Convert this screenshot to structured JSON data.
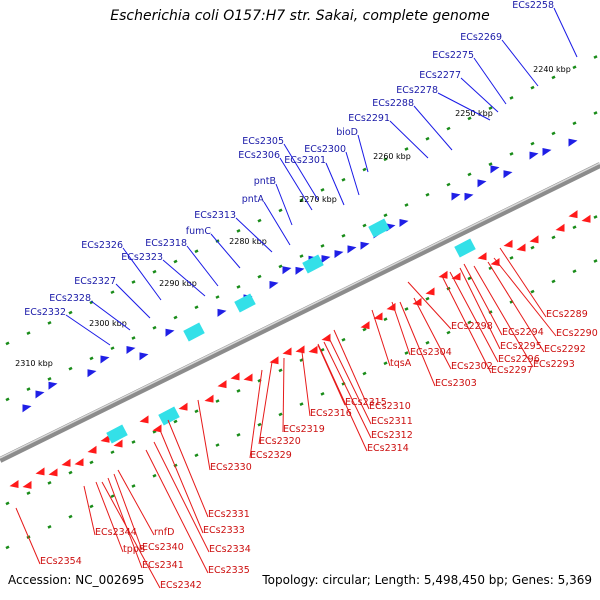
{
  "title": "Escherichia coli O157:H7 str. Sakai, complete genome",
  "footer": {
    "accession": "Accession: NC_002695",
    "summary": "Topology: circular; Length: 5,498,450 bp; Genes: 5,369"
  },
  "colors": {
    "forward_strand": "#1f1fe6",
    "reverse_strand": "#ff1a1a",
    "feature_cyan": "#33e0e8",
    "backbone": "#8c8c8c",
    "tick": "#1a8c1a",
    "label_forward": "#1a1aa8",
    "label_reverse": "#cc1010"
  },
  "scale_ticks": [
    "2240 kbp",
    "2250 kbp",
    "2260 kbp",
    "2270 kbp",
    "2280 kbp",
    "2290 kbp",
    "2300 kbp",
    "2310 kbp"
  ],
  "genes_forward": [
    "ECs2258",
    "ECs2269",
    "ECs2275",
    "ECs2277",
    "ECs2278",
    "ECs2288",
    "ECs2291",
    "bioD",
    "ECs2300",
    "ECs2305",
    "ECs2306",
    "ECs2301",
    "pntB",
    "pntA",
    "ECs2313",
    "fumC",
    "ECs2318",
    "ECs2326",
    "ECs2323",
    "ECs2327",
    "ECs2328",
    "ECs2332"
  ],
  "genes_reverse": [
    "ECs2289",
    "ECs2290",
    "ECs2292",
    "ECs2293",
    "ECs2294",
    "ECs2295",
    "ECs2296",
    "ECs2297",
    "ECs2298",
    "ECs2302",
    "ECs2303",
    "ECs2304",
    "tqsA",
    "ECs2310",
    "ECs2311",
    "ECs2312",
    "ECs2314",
    "ECs2315",
    "ECs2316",
    "ECs2319",
    "ECs2320",
    "ECs2329",
    "ECs2330",
    "ECs2331",
    "ECs2333",
    "ECs2334",
    "ECs2335",
    "rnfD",
    "ECs2340",
    "ECs2341",
    "ECs2342",
    "tppB",
    "ECs2344",
    "ECs2354"
  ]
}
